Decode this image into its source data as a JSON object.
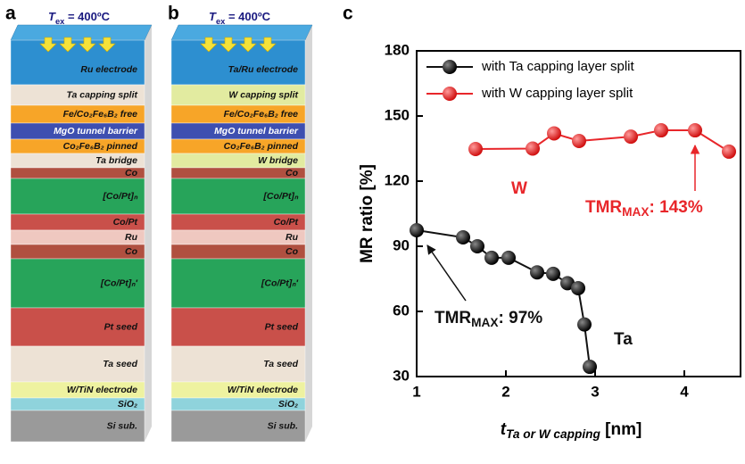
{
  "panel_labels": [
    "a",
    "b",
    "c"
  ],
  "stacks": [
    {
      "temperature": {
        "symbol": "T",
        "sub": "ex",
        "rest": " = 400ºC"
      },
      "layers": [
        "Ru electrode",
        "Ta capping split",
        "Fe/Co₂Fe₆B₂ free",
        "MgO tunnel barrier",
        "Co₂Fe₆B₂ pinned",
        "Ta bridge",
        "Co",
        "[Co/Pt]ₙ",
        "Co/Pt",
        "Ru",
        "Co",
        "[Co/Pt]ₙ′",
        "Pt seed",
        "Ta seed",
        "W/TiN electrode",
        "SiO₂",
        "Si sub."
      ]
    },
    {
      "temperature": {
        "symbol": "T",
        "sub": "ex",
        "rest": " = 400ºC"
      },
      "layers": [
        "Ta/Ru electrode",
        "W capping split",
        "Fe/Co₂Fe₆B₂ free",
        "MgO tunnel barrier",
        "Co₂Fe₆B₂ pinned",
        "W bridge",
        "Co",
        "[Co/Pt]ₙ",
        "Co/Pt",
        "Ru",
        "Co",
        "[Co/Pt]ₙ′",
        "Pt seed",
        "Ta seed",
        "W/TiN electrode",
        "SiO₂",
        "Si sub."
      ]
    }
  ],
  "chart_data": {
    "type": "line",
    "y_label": "MR ratio [%]",
    "x_label": {
      "symbol": "t",
      "sub": "Ta or W capping",
      "rest": " [nm]"
    },
    "xlim": [
      1,
      4.63
    ],
    "xticks": [
      1,
      2,
      3,
      4
    ],
    "ylim": [
      30,
      180
    ],
    "yticks": [
      30,
      60,
      90,
      120,
      150,
      180
    ],
    "series": [
      {
        "name": "with Ta capping layer split",
        "color": "#111111",
        "x": [
          1.0,
          1.52,
          1.68,
          1.84,
          2.03,
          2.35,
          2.53,
          2.69,
          2.81,
          2.88,
          2.94
        ],
        "values": [
          97.4,
          94.1,
          90,
          84.7,
          84.7,
          78,
          77.3,
          73,
          70.7,
          54,
          34.5
        ]
      },
      {
        "name": "with W capping layer split",
        "color": "#e8262a",
        "x": [
          1.66,
          2.3,
          2.54,
          2.82,
          3.4,
          3.74,
          4.12,
          4.5
        ],
        "values": [
          134.8,
          135,
          142,
          138.5,
          140.5,
          143.4,
          143.4,
          133.6
        ]
      }
    ],
    "annotations": [
      {
        "text": "TMR",
        "sub": "MAX",
        "rest": ": 97%",
        "color": "#111111"
      },
      {
        "text": "TMR",
        "sub": "MAX",
        "rest": ": 143%",
        "color": "#e8262a"
      },
      {
        "text": "W",
        "color": "#e8262a"
      },
      {
        "text": "Ta",
        "color": "#111111"
      }
    ]
  }
}
